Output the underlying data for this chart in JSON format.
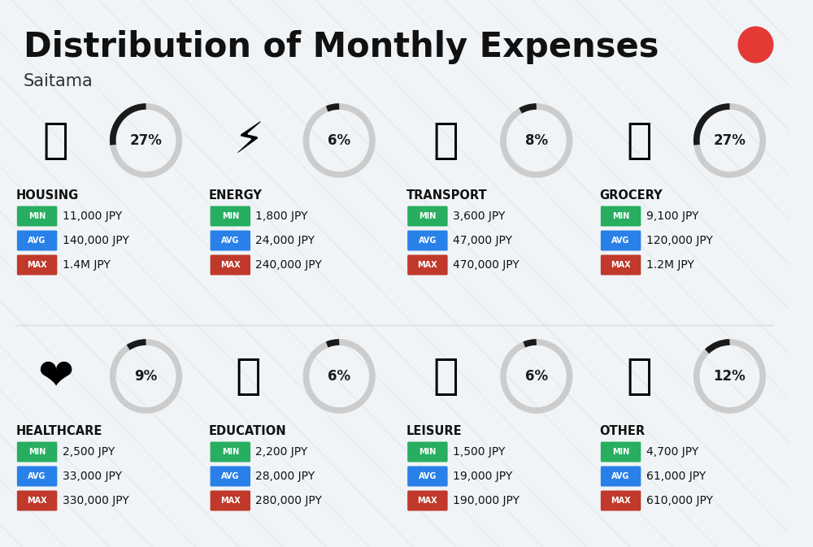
{
  "title": "Distribution of Monthly Expenses",
  "subtitle": "Saitama",
  "bg_color": "#f0f4f7",
  "title_color": "#111111",
  "subtitle_color": "#333333",
  "categories": [
    {
      "name": "HOUSING",
      "pct": 27,
      "icon_char": "🏗",
      "min": "11,000 JPY",
      "avg": "140,000 JPY",
      "max": "1.4M JPY",
      "col": 0,
      "row": 0
    },
    {
      "name": "ENERGY",
      "pct": 6,
      "icon_char": "⚡",
      "min": "1,800 JPY",
      "avg": "24,000 JPY",
      "max": "240,000 JPY",
      "col": 1,
      "row": 0
    },
    {
      "name": "TRANSPORT",
      "pct": 8,
      "icon_char": "🚌",
      "min": "3,600 JPY",
      "avg": "47,000 JPY",
      "max": "470,000 JPY",
      "col": 2,
      "row": 0
    },
    {
      "name": "GROCERY",
      "pct": 27,
      "icon_char": "🛒",
      "min": "9,100 JPY",
      "avg": "120,000 JPY",
      "max": "1.2M JPY",
      "col": 3,
      "row": 0
    },
    {
      "name": "HEALTHCARE",
      "pct": 9,
      "icon_char": "❤",
      "min": "2,500 JPY",
      "avg": "33,000 JPY",
      "max": "330,000 JPY",
      "col": 0,
      "row": 1
    },
    {
      "name": "EDUCATION",
      "pct": 6,
      "icon_char": "🎓",
      "min": "2,200 JPY",
      "avg": "28,000 JPY",
      "max": "280,000 JPY",
      "col": 1,
      "row": 1
    },
    {
      "name": "LEISURE",
      "pct": 6,
      "icon_char": "🛍",
      "min": "1,500 JPY",
      "avg": "19,000 JPY",
      "max": "190,000 JPY",
      "col": 2,
      "row": 1
    },
    {
      "name": "OTHER",
      "pct": 12,
      "icon_char": "👜",
      "min": "4,700 JPY",
      "avg": "61,000 JPY",
      "max": "610,000 JPY",
      "col": 3,
      "row": 1
    }
  ],
  "min_color": "#27ae60",
  "avg_color": "#2980e8",
  "max_color": "#c0392b",
  "ring_bg_color": "#cccccc",
  "ring_fg_color": "#1a1a1a",
  "red_dot_color": "#e53935",
  "stripe_color": "#d8dce0",
  "divider_color": "#cccccc"
}
